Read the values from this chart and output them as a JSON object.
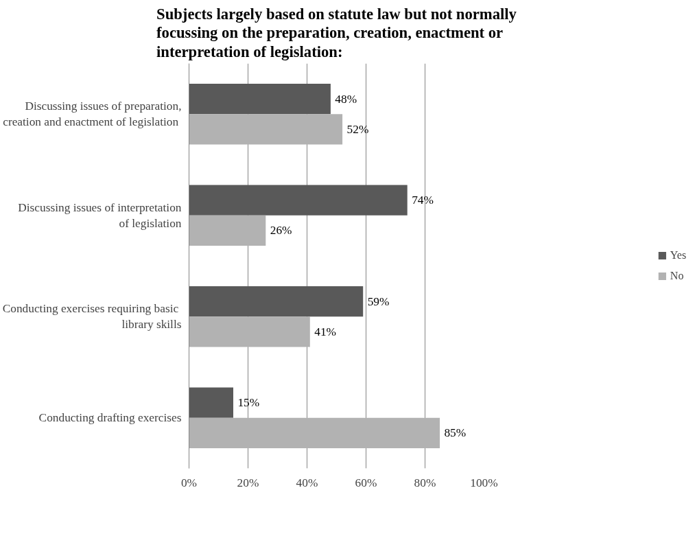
{
  "chart_data": {
    "type": "bar",
    "orientation": "horizontal",
    "title": "Subjects largely based on statute law but not normally focussing on the preparation, creation, enactment or interpretation of legislation:",
    "categories": [
      "Discussing issues of preparation, creation and enactment  of legislation",
      "Discussing issues of interpretation  of legislation",
      "Conducting exercises requiring  basic library skills",
      "Conducting drafting exercises"
    ],
    "series": [
      {
        "name": "Yes",
        "color": "#595959",
        "values": [
          48,
          74,
          59,
          15
        ],
        "value_labels": [
          "48%",
          "74%",
          "59%",
          "15%"
        ]
      },
      {
        "name": "No",
        "color": "#b2b2b2",
        "values": [
          52,
          26,
          41,
          85
        ],
        "value_labels": [
          "52%",
          "26%",
          "41%",
          "85%"
        ]
      }
    ],
    "xlim": [
      0,
      100
    ],
    "xticks": [
      {
        "value": 0,
        "label": "0%"
      },
      {
        "value": 20,
        "label": "20%"
      },
      {
        "value": 40,
        "label": "40%"
      },
      {
        "value": 60,
        "label": "60%"
      },
      {
        "value": 80,
        "label": "80%"
      },
      {
        "value": 100,
        "label": "100%"
      }
    ],
    "grid": "x",
    "legend": "right"
  }
}
